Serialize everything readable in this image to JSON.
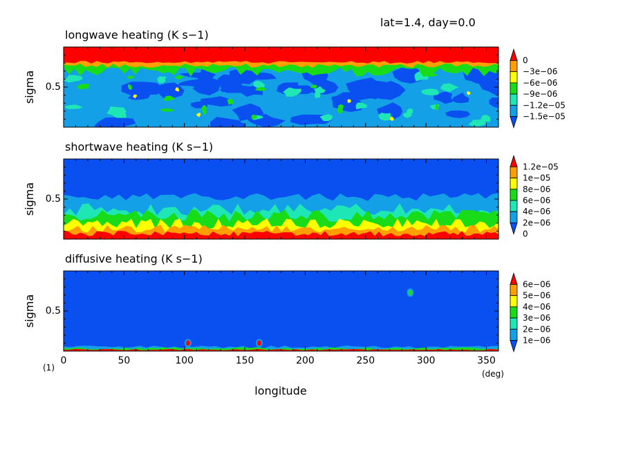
{
  "header": {
    "title": "lat=1.4, day=0.0"
  },
  "colors": {
    "blue": "#0a50f0",
    "lightblue": "#14a0e6",
    "teal": "#1ee6b4",
    "green": "#18dc18",
    "yellow": "#ffff00",
    "orange": "#ffa000",
    "red": "#ff0000"
  },
  "chart_data": [
    {
      "type": "heatmap",
      "title": "longwave heating (K s−1)",
      "ylabel": "sigma",
      "yticks": [
        "0.5"
      ],
      "xlim": [
        0,
        360
      ],
      "levels": [
        "0",
        "−3e−06",
        "−6e−06",
        "−9e−06",
        "−1.2e−05",
        "−1.5e−05"
      ],
      "bands": [
        {
          "sigma": [
            0.8,
            1.0
          ],
          "value": "red"
        },
        {
          "sigma": [
            0.78,
            0.8
          ],
          "value": "orange"
        },
        {
          "sigma": [
            0.72,
            0.78
          ],
          "value": "green"
        },
        {
          "sigma": [
            0.0,
            0.72
          ],
          "value": "mixed lightblue/blue/teal/green"
        }
      ]
    },
    {
      "type": "heatmap",
      "title": "shortwave heating (K s−1)",
      "ylabel": "sigma",
      "yticks": [
        "0.5"
      ],
      "xlim": [
        0,
        360
      ],
      "levels": [
        "1.2e−05",
        "1e−05",
        "8e−06",
        "6e−06",
        "4e−06",
        "2e−06",
        "0"
      ],
      "bands": [
        {
          "sigma": [
            0.55,
            1.0
          ],
          "value": "blue"
        },
        {
          "sigma": [
            0.2,
            0.55
          ],
          "value": "lightblue/teal/green"
        },
        {
          "sigma": [
            0.05,
            0.2
          ],
          "value": "green/yellow/orange"
        },
        {
          "sigma": [
            0.0,
            0.05
          ],
          "value": "red"
        }
      ]
    },
    {
      "type": "heatmap",
      "title": "diffusive heating (K s−1)",
      "ylabel": "sigma",
      "yticks": [
        "0.5"
      ],
      "xlabel": "longitude",
      "xunit": "(deg)",
      "corner_label": "(1)",
      "xticks": [
        "0",
        "50",
        "100",
        "150",
        "200",
        "250",
        "300",
        "350"
      ],
      "xlim": [
        0,
        360
      ],
      "levels": [
        "6e−06",
        "5e−06",
        "4e−06",
        "3e−06",
        "2e−06",
        "1e−06"
      ],
      "bands": [
        {
          "sigma": [
            0.05,
            1.0
          ],
          "value": "blue"
        },
        {
          "sigma": [
            0.0,
            0.05
          ],
          "value": "lightblue/green/red"
        }
      ],
      "spots": [
        {
          "lon": 103,
          "sigma": 0.1,
          "value": "red"
        },
        {
          "lon": 162,
          "sigma": 0.1,
          "value": "red"
        },
        {
          "lon": 287,
          "sigma": 0.73,
          "value": "green"
        }
      ]
    }
  ]
}
